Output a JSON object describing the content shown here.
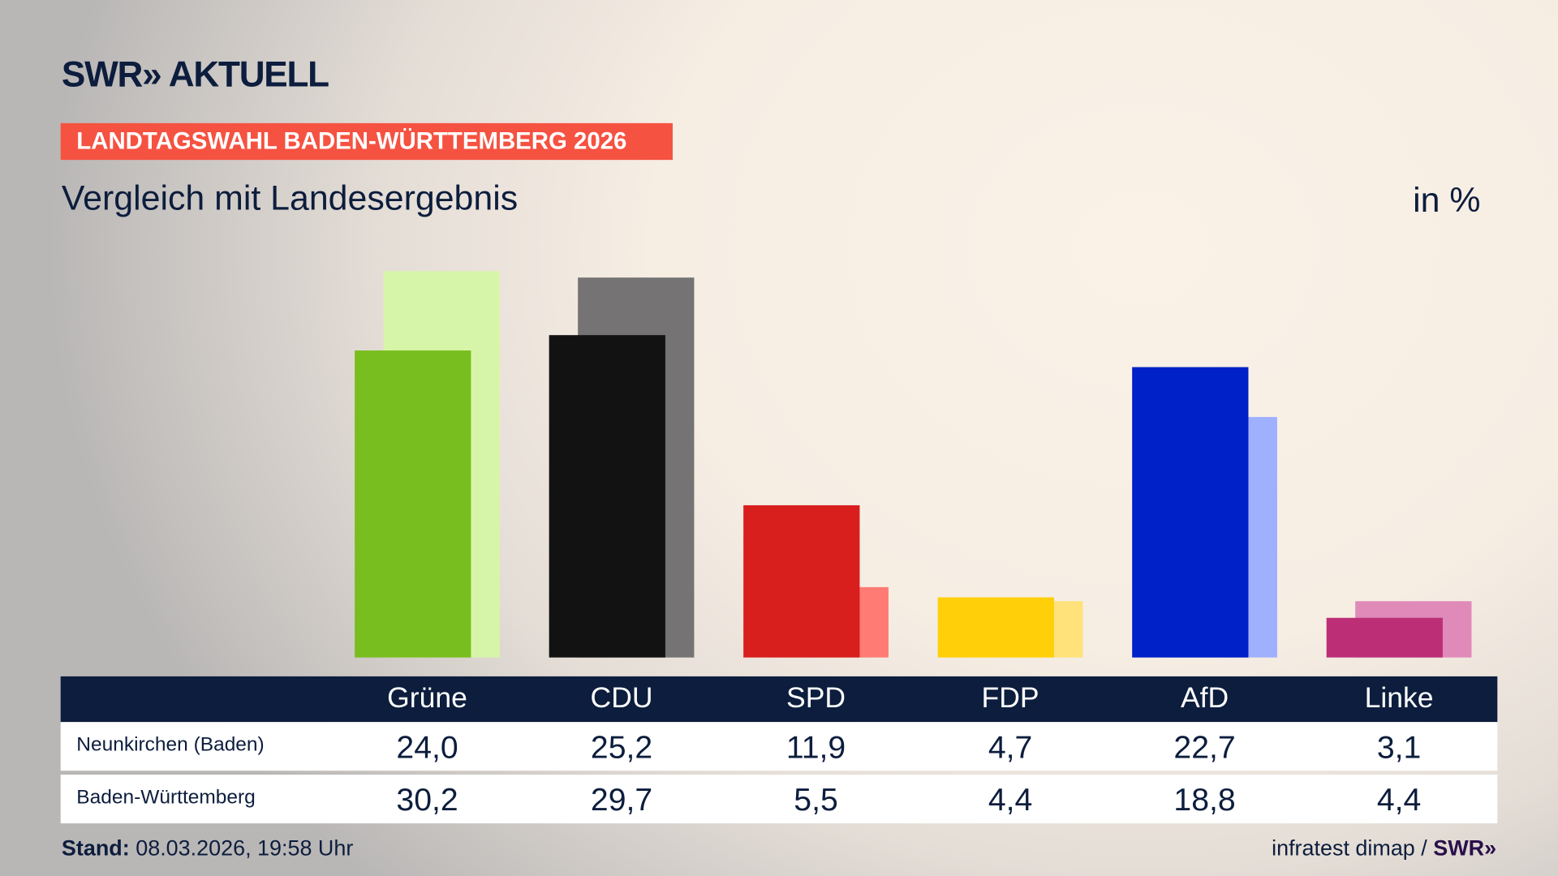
{
  "header": {
    "logo": "SWR» AKTUELL",
    "banner": "LANDTAGSWAHL BADEN-WÜRTTEMBERG 2026",
    "subtitle": "Vergleich mit Landesergebnis",
    "unit": "in %"
  },
  "chart_data": {
    "type": "bar",
    "categories": [
      "Grüne",
      "CDU",
      "SPD",
      "FDP",
      "AfD",
      "Linke"
    ],
    "series": [
      {
        "name": "Neunkirchen (Baden)",
        "values": [
          24.0,
          25.2,
          11.9,
          4.7,
          22.7,
          3.1
        ],
        "labels": [
          "24,0",
          "25,2",
          "11,9",
          "4,7",
          "22,7",
          "3,1"
        ],
        "colors": [
          "#78be1e",
          "#121212",
          "#d81f1e",
          "#ffcf0a",
          "#0020c8",
          "#bc2f76"
        ]
      },
      {
        "name": "Baden-Württemberg",
        "values": [
          30.2,
          29.7,
          5.5,
          4.4,
          18.8,
          4.4
        ],
        "labels": [
          "30,2",
          "29,7",
          "5,5",
          "4,4",
          "18,8",
          "4,4"
        ],
        "colors": [
          "#d7f5a8",
          "#757373",
          "#ff7b73",
          "#ffe27a",
          "#9fb0ff",
          "#df8ab8"
        ]
      }
    ],
    "ylim": [
      0,
      31
    ],
    "grid": false
  },
  "footer": {
    "stand_label": "Stand:",
    "stand_value": "08.03.2026, 19:58 Uhr",
    "source": "infratest dimap /",
    "source_logo": "SWR»"
  }
}
